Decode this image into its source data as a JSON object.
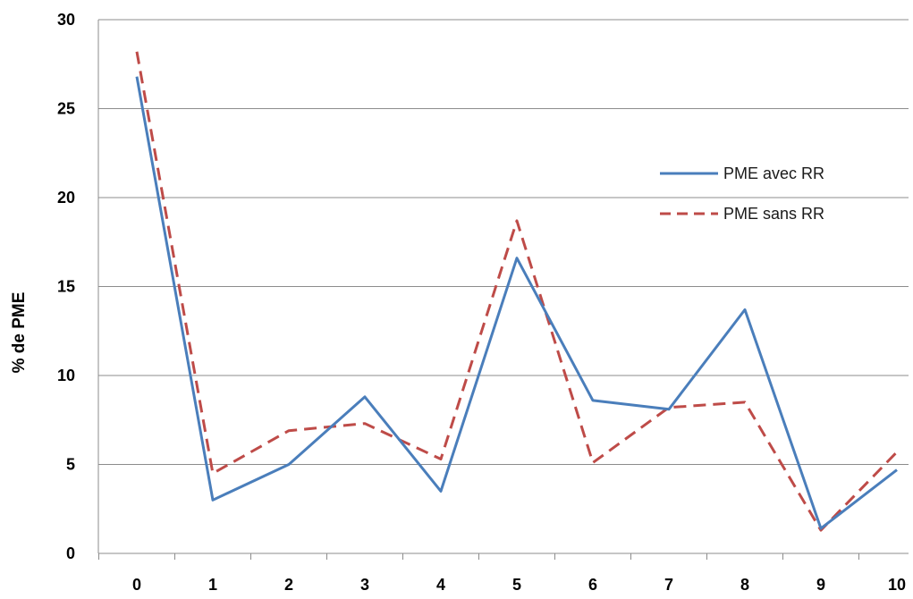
{
  "chart_data": {
    "type": "line",
    "title": "",
    "xlabel": "",
    "ylabel": "% de PME",
    "x": [
      0,
      1,
      2,
      3,
      4,
      5,
      6,
      7,
      8,
      9,
      10
    ],
    "xticks": [
      "0",
      "1",
      "2",
      "3",
      "4",
      "5",
      "6",
      "7",
      "8",
      "9",
      "10"
    ],
    "yticks": [
      "0",
      "5",
      "10",
      "15",
      "20",
      "25",
      "30"
    ],
    "ylim": [
      0,
      30
    ],
    "xlim": [
      0,
      10
    ],
    "grid": "horizontal",
    "legend_position": "right",
    "series": [
      {
        "name": "PME avec RR",
        "color": "#4a7ebb",
        "style": "solid",
        "values": [
          26.8,
          3.0,
          5.0,
          8.8,
          3.5,
          16.6,
          8.6,
          8.1,
          13.7,
          1.4,
          4.7
        ]
      },
      {
        "name": "PME sans RR",
        "color": "#be4b48",
        "style": "dashed",
        "values": [
          28.2,
          4.5,
          6.9,
          7.3,
          5.3,
          18.7,
          5.1,
          8.2,
          8.5,
          1.3,
          5.7
        ]
      }
    ]
  }
}
